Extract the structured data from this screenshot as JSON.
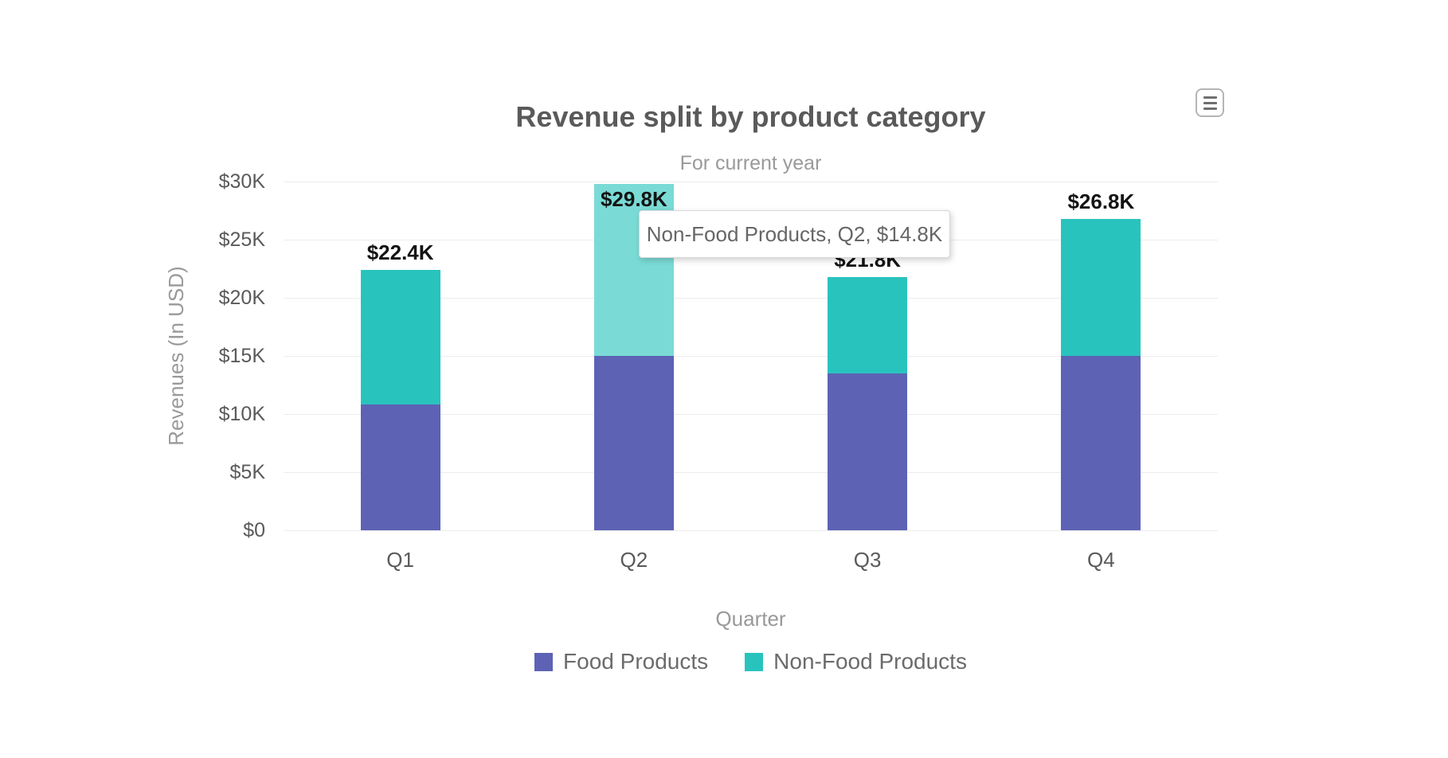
{
  "chart_data": {
    "type": "bar",
    "stacked": true,
    "title": "Revenue split by product category",
    "subtitle": "For current year",
    "xlabel": "Quarter",
    "ylabel": "Revenues (In USD)",
    "categories": [
      "Q1",
      "Q2",
      "Q3",
      "Q4"
    ],
    "series": [
      {
        "name": "Food Products",
        "color": "#5d62b5",
        "values": [
          10.8,
          15.0,
          13.5,
          15.0
        ]
      },
      {
        "name": "Non-Food Products",
        "color": "#29c3be",
        "values": [
          11.6,
          14.8,
          8.3,
          11.8
        ]
      }
    ],
    "totals": [
      22.4,
      29.8,
      21.8,
      26.8
    ],
    "total_labels": [
      "$22.4K",
      "$29.8K",
      "$21.8K",
      "$26.8K"
    ],
    "y_ticks": [
      "$0",
      "$5K",
      "$10K",
      "$15K",
      "$20K",
      "$25K",
      "$30K"
    ],
    "ylim": [
      0,
      30
    ],
    "grid": "horizontal",
    "legend_position": "bottom",
    "highlight": {
      "series_index": 1,
      "category_index": 1,
      "color": "#7adbd6"
    },
    "tooltip": {
      "text": "Non-Food Products, Q2, $14.8K"
    }
  },
  "menu": {
    "icon": "hamburger-menu-icon"
  }
}
